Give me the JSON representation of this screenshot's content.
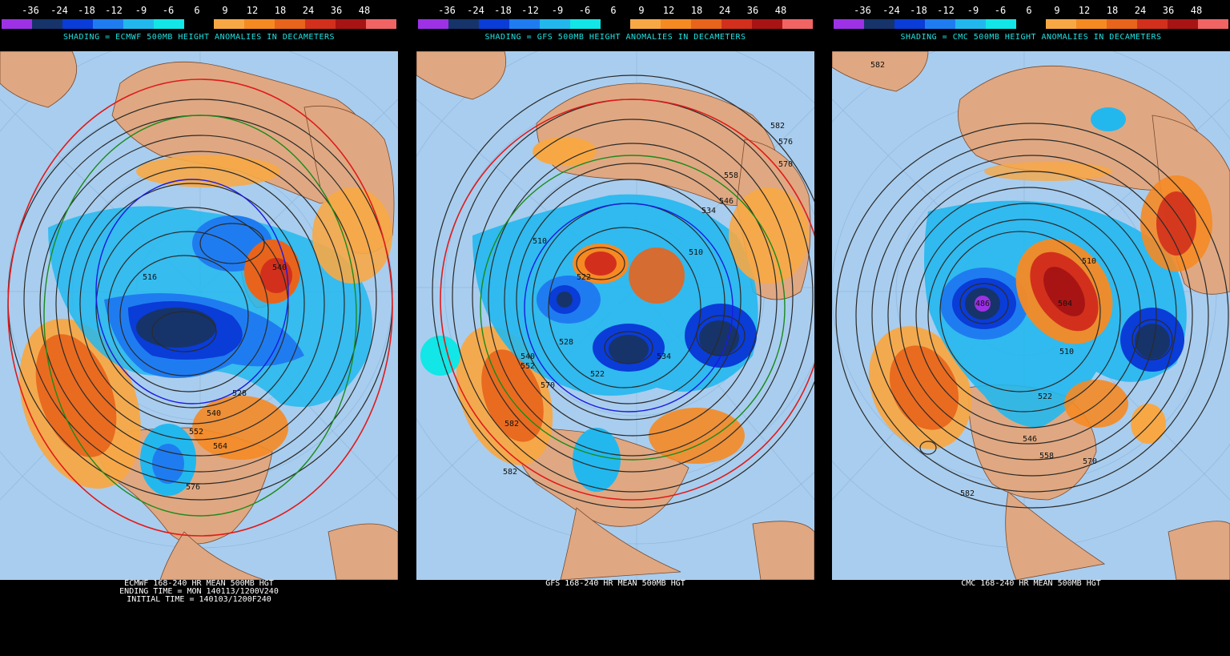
{
  "legend": {
    "labels": [
      "-36",
      "-24",
      "-18",
      "-12",
      "-9",
      "-6",
      "6",
      "9",
      "12",
      "18",
      "24",
      "36",
      "48"
    ],
    "colors": [
      "#9d31e6",
      "#16346a",
      "#0a3cd8",
      "#1f7cf0",
      "#22b8ee",
      "#12e6e6",
      "#000000",
      "#f7a845",
      "#f58a23",
      "#e8641c",
      "#d2301c",
      "#a81414",
      "#f06464"
    ]
  },
  "panels": [
    {
      "model": "ECMWF",
      "shading_text": "SHADING = ECMWF 500MB HEIGHT ANOMALIES IN DECAMETERS",
      "caption": [
        "ECMWF 168-240 HR MEAN 500MB HGT",
        "ENDING TIME = MON 140113/1200V240",
        "INITIAL TIME = 140103/1200F240"
      ],
      "contour_labels": [
        "516",
        "540",
        "528",
        "540",
        "552",
        "564",
        "576"
      ]
    },
    {
      "model": "GFS",
      "shading_text": "SHADING = GFS 500MB HEIGHT ANOMALIES IN DECAMETERS",
      "caption": [
        "GFS 168-240 HR MEAN 500MB HGT"
      ],
      "contour_labels": [
        "582",
        "576",
        "570",
        "558",
        "546",
        "534",
        "522",
        "510",
        "528",
        "540",
        "552",
        "570",
        "582",
        "582",
        "510",
        "534",
        "522"
      ]
    },
    {
      "model": "CMC",
      "shading_text": "SHADING = CMC 500MB HEIGHT ANOMALIES IN DECAMETERS",
      "caption": [
        "CMC 168-240 HR MEAN 500MB HGT"
      ],
      "contour_labels": [
        "582",
        "510",
        "522",
        "546",
        "558",
        "570",
        "582",
        "486",
        "504",
        "510"
      ]
    }
  ]
}
